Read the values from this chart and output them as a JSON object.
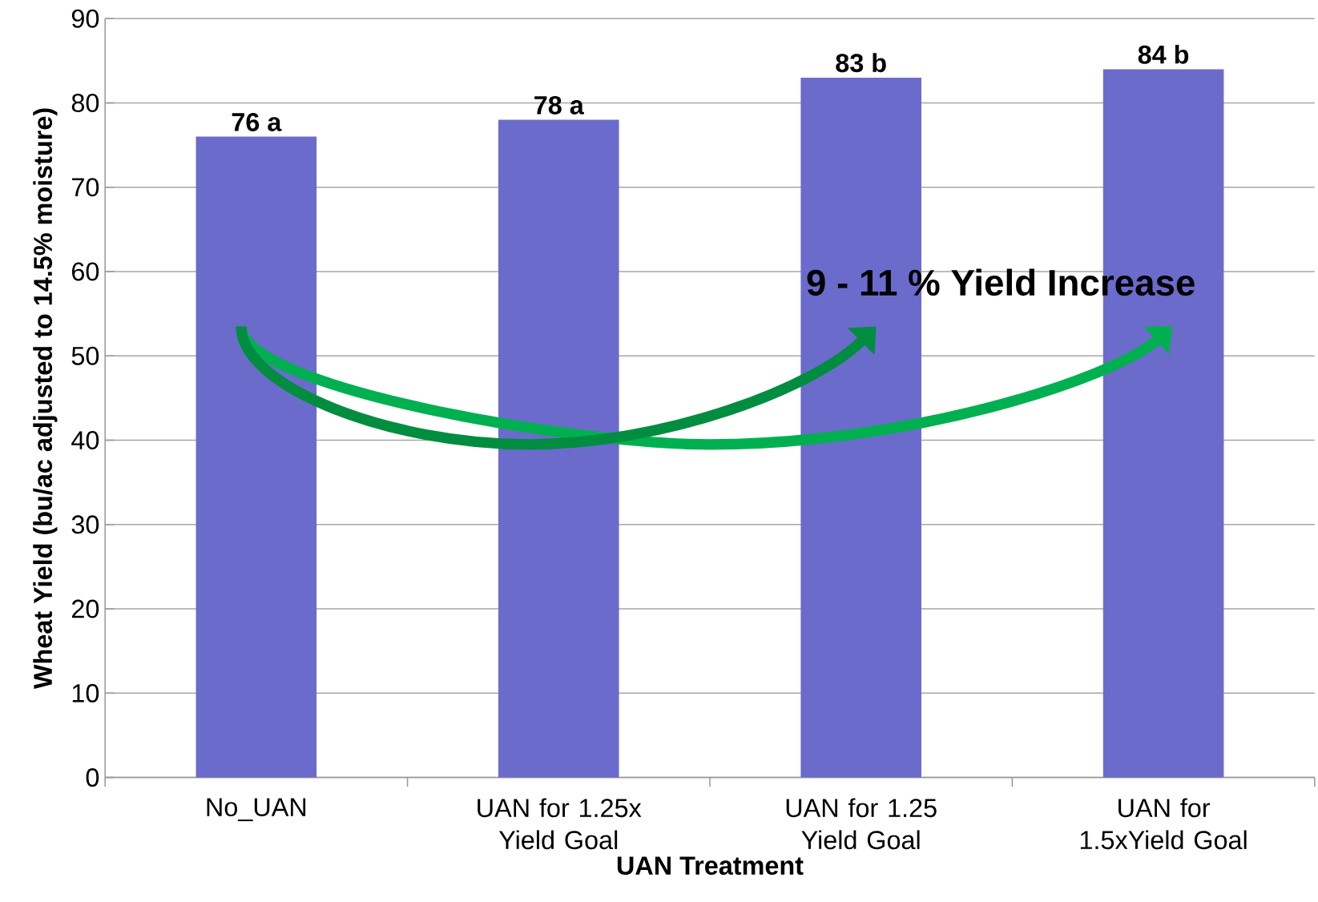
{
  "chart_data": {
    "type": "bar",
    "xlabel": "UAN Treatment",
    "ylabel": "Wheat Yield (bu/ac adjusted to 14.5% moisture)",
    "categories": [
      "No_UAN",
      "UAN for 1.25x Yield Goal",
      "UAN for 1.25 Yield Goal",
      "UAN for 1.5xYield Goal"
    ],
    "values": [
      76,
      78,
      83,
      84
    ],
    "color": "#6b6bcc",
    "value_labels": [
      "76 a",
      "78 a",
      "83 b",
      "84 b"
    ],
    "annotations": [
      "9 - 11 % Yield Increase"
    ],
    "ylim": [
      0,
      90
    ],
    "yticks": [
      0,
      10,
      20,
      30,
      40,
      50,
      60,
      70,
      80,
      90
    ],
    "grid": "y"
  }
}
